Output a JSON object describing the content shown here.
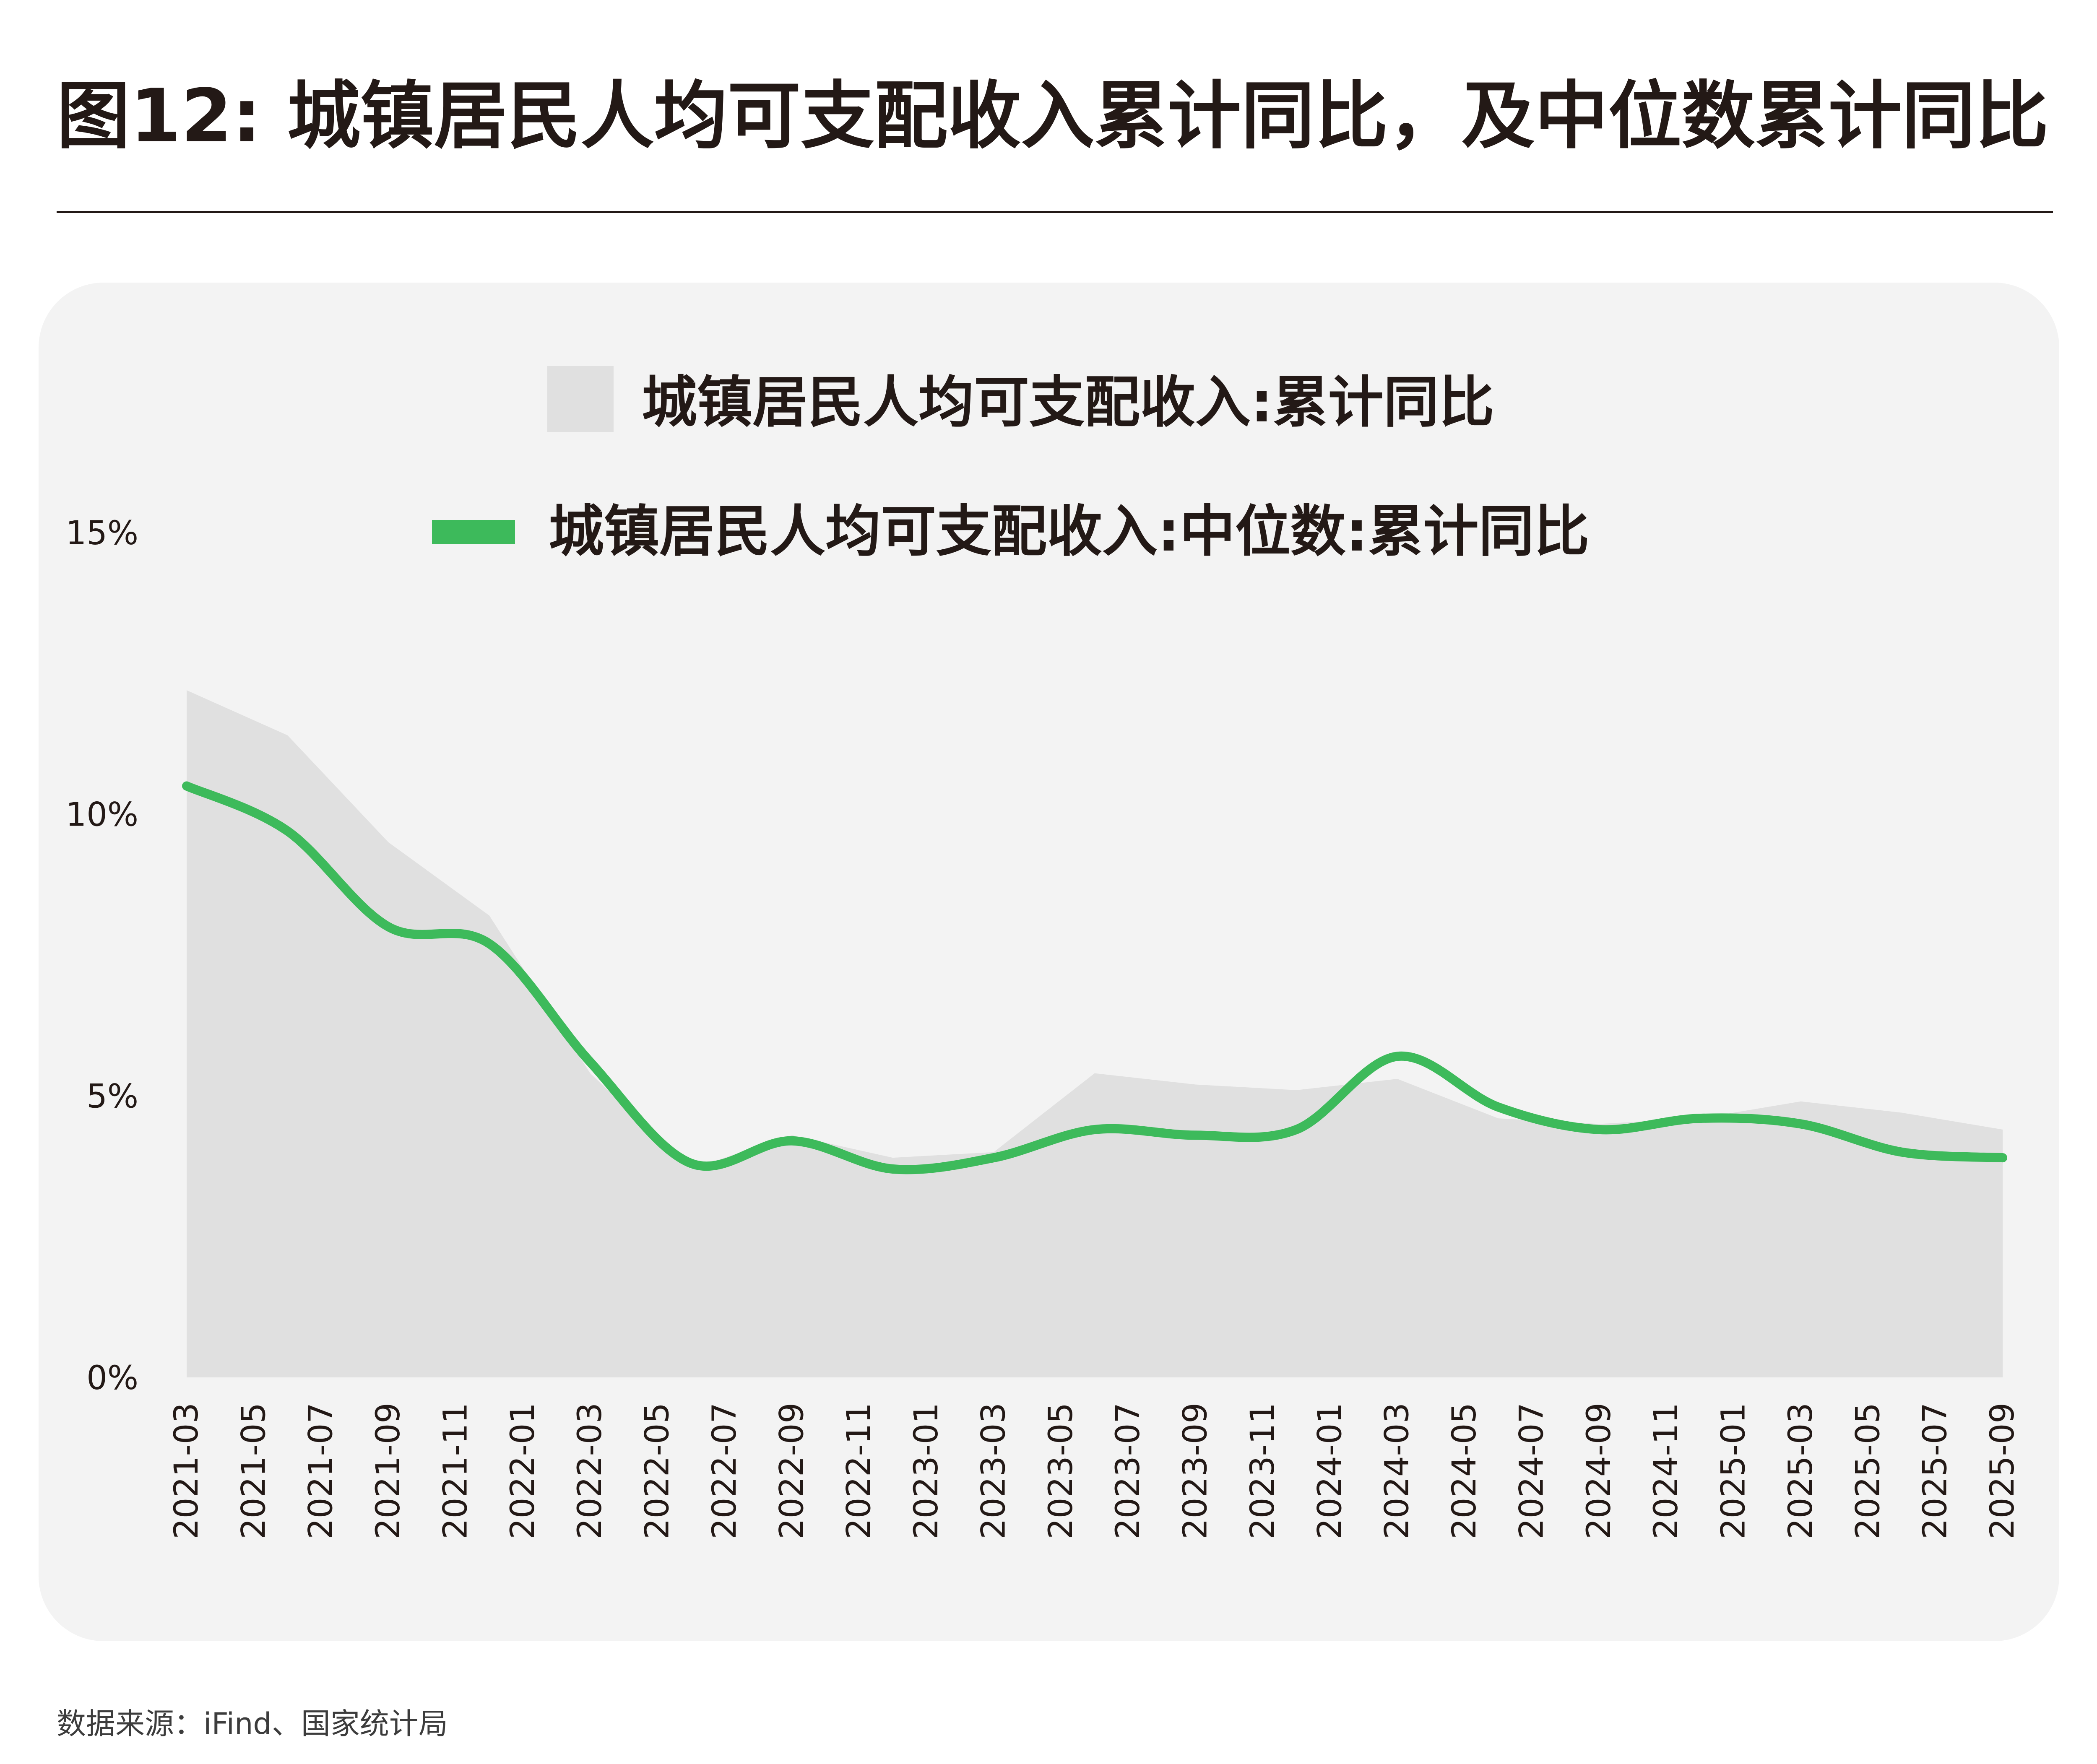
{
  "title": "图12: 城镇居民人均可支配收入累计同比，及中位数累计同比",
  "source": "数据来源：iFind、国家统计局",
  "colors": {
    "area": "#e0e0e0",
    "line": "#3dba5b",
    "panel": "#f3f3f3",
    "text": "#231916"
  },
  "chart_data": {
    "type": "area",
    "ylim": [
      0,
      15
    ],
    "yticks": [
      "0%",
      "5%",
      "10%",
      "15%"
    ],
    "ytick_values": [
      0,
      5,
      10,
      15
    ],
    "x": [
      "2021-03",
      "2021-06",
      "2021-09",
      "2021-12",
      "2022-03",
      "2022-06",
      "2022-09",
      "2022-12",
      "2023-03",
      "2023-06",
      "2023-09",
      "2023-12",
      "2024-03",
      "2024-06",
      "2024-09",
      "2024-12",
      "2025-03",
      "2025-06",
      "2025-09"
    ],
    "xticks": [
      "2021-03",
      "2021-05",
      "2021-07",
      "2021-09",
      "2021-11",
      "2022-01",
      "2022-03",
      "2022-05",
      "2022-07",
      "2022-09",
      "2022-11",
      "2023-01",
      "2023-03",
      "2023-05",
      "2023-07",
      "2023-09",
      "2023-11",
      "2024-01",
      "2024-03",
      "2024-05",
      "2024-07",
      "2024-09",
      "2024-11",
      "2025-01",
      "2025-03",
      "2025-05",
      "2025-07",
      "2025-09"
    ],
    "series": [
      {
        "name": "城镇居民人均可支配收入:累计同比",
        "type": "area",
        "values": [
          12.2,
          11.4,
          9.5,
          8.2,
          5.4,
          3.7,
          4.3,
          3.9,
          4.0,
          5.4,
          5.2,
          5.1,
          5.3,
          4.6,
          4.5,
          4.6,
          4.9,
          4.7,
          4.4
        ]
      },
      {
        "name": "城镇居民人均可支配收入:中位数:累计同比",
        "type": "line",
        "values": [
          10.5,
          9.7,
          8.0,
          7.7,
          5.6,
          3.8,
          4.2,
          3.7,
          3.9,
          4.4,
          4.3,
          4.4,
          5.7,
          4.8,
          4.4,
          4.6,
          4.5,
          4.0,
          3.9
        ]
      }
    ]
  }
}
